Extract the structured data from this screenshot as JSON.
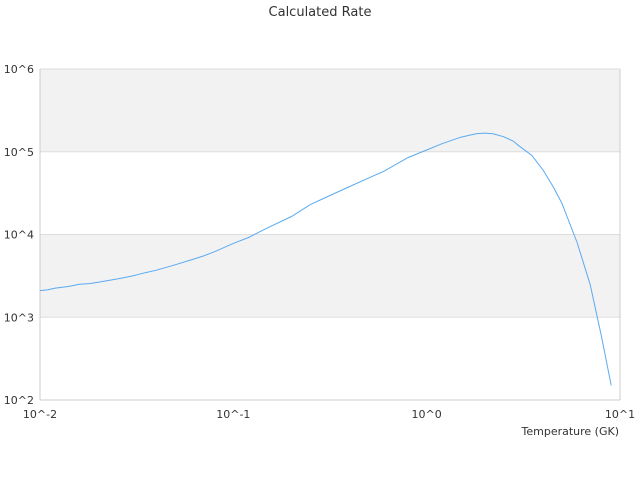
{
  "chart_data": {
    "type": "line",
    "title": "Calculated Rate",
    "xlabel": "Temperature (GK)",
    "ylabel": "",
    "x_scale": "log",
    "y_scale": "log",
    "xlim": [
      0.01,
      10
    ],
    "ylim": [
      100,
      1000000
    ],
    "x_ticks": [
      0.01,
      0.1,
      1,
      10
    ],
    "x_tick_labels": [
      "10^-2",
      "10^-1",
      "10^0",
      "10^1"
    ],
    "y_ticks": [
      100,
      1000,
      10000,
      100000,
      1000000
    ],
    "y_tick_labels": [
      "10^2",
      "10^3",
      "10^4",
      "10^5",
      "10^6"
    ],
    "grid": "horizontal alternating bands",
    "legend": "none",
    "colors": {
      "line": "#5aaaf0",
      "band": "#f2f2f3",
      "gridline": "#dddddd",
      "axis": "#cccccc"
    },
    "series": [
      {
        "x": [
          0.01,
          0.011,
          0.012,
          0.014,
          0.016,
          0.018,
          0.02,
          0.025,
          0.03,
          0.035,
          0.04,
          0.05,
          0.06,
          0.07,
          0.08,
          0.1,
          0.12,
          0.15,
          0.2,
          0.25,
          0.3,
          0.4,
          0.5,
          0.6,
          0.8,
          1.0,
          1.2,
          1.5,
          1.8,
          2.0,
          2.2,
          2.5,
          2.8,
          3.0,
          3.5,
          4.0,
          4.5,
          5.0,
          6.0,
          7.0,
          8.0,
          9.0
        ],
        "y": [
          2100,
          2150,
          2250,
          2350,
          2500,
          2550,
          2650,
          2900,
          3150,
          3450,
          3700,
          4300,
          4900,
          5500,
          6200,
          7800,
          9200,
          12000,
          16500,
          23000,
          28000,
          38000,
          48000,
          58000,
          85000,
          105000,
          125000,
          150000,
          165000,
          168000,
          165000,
          152000,
          135000,
          118000,
          90000,
          60000,
          38000,
          24000,
          8000,
          2500,
          600,
          150
        ]
      }
    ]
  }
}
